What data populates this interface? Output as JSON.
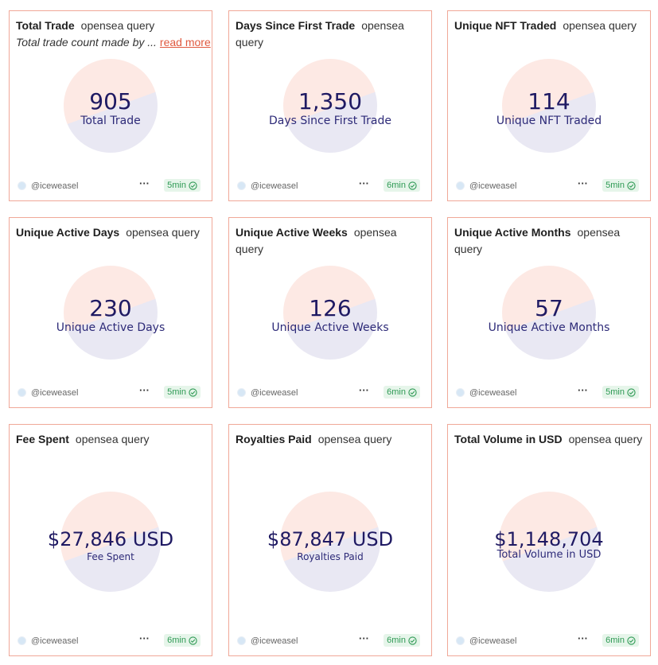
{
  "cards": [
    {
      "title": "Total Trade",
      "source": "opensea query",
      "description": "Total trade count made by ...",
      "read_more": "read more",
      "value": "905",
      "label": "Total Trade",
      "author": "@iceweasel",
      "refresh": "5min",
      "more": "···"
    },
    {
      "title": "Days Since First Trade",
      "source": "opensea query",
      "value": "1,350",
      "label": "Days Since First Trade",
      "author": "@iceweasel",
      "refresh": "6min",
      "more": "···"
    },
    {
      "title": "Unique NFT Traded",
      "source": "opensea query",
      "value": "114",
      "label": "Unique NFT Traded",
      "author": "@iceweasel",
      "refresh": "5min",
      "more": "···"
    },
    {
      "title": "Unique Active Days",
      "source": "opensea query",
      "value": "230",
      "label": "Unique Active Days",
      "author": "@iceweasel",
      "refresh": "5min",
      "more": "···"
    },
    {
      "title": "Unique Active Weeks",
      "source": "opensea query",
      "value": "126",
      "label": "Unique Active Weeks",
      "author": "@iceweasel",
      "refresh": "6min",
      "more": "···"
    },
    {
      "title": "Unique Active Months",
      "source": "opensea query",
      "value": "57",
      "label": "Unique Active Months",
      "author": "@iceweasel",
      "refresh": "5min",
      "more": "···"
    },
    {
      "title": "Fee Spent",
      "source": "opensea query",
      "value": "$27,846 USD",
      "label": "Fee Spent",
      "author": "@iceweasel",
      "refresh": "6min",
      "more": "···"
    },
    {
      "title": "Royalties Paid",
      "source": "opensea query",
      "value": "$87,847 USD",
      "label": "Royalties Paid",
      "author": "@iceweasel",
      "refresh": "6min",
      "more": "···"
    },
    {
      "title": "Total Volume in USD",
      "source": "opensea query",
      "value": "$1,148,704",
      "label": "Total Volume in USD",
      "author": "@iceweasel",
      "refresh": "6min",
      "more": "···"
    }
  ],
  "colors": {
    "border": "#f0a898",
    "value": "#1f1a63",
    "badge_bg": "#e6f5ea",
    "badge_text": "#2f9a55",
    "link": "#e0593f"
  }
}
